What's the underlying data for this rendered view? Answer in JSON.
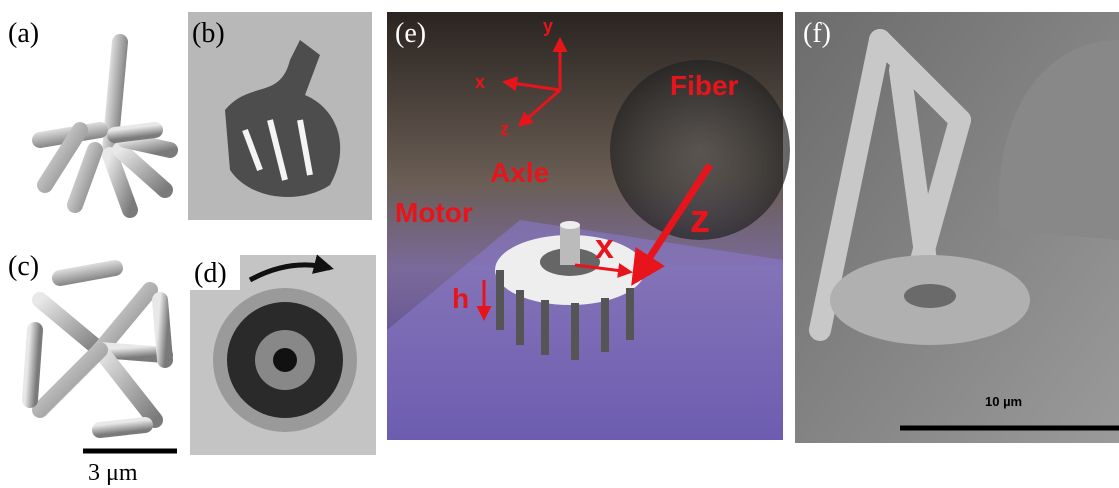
{
  "labels": {
    "a": "(a)",
    "b": "(b)",
    "c": "(c)",
    "d": "(d)",
    "e": "(e)",
    "f": "(f)"
  },
  "scale_bar_left": "3 μm",
  "panel_e": {
    "axis_y": "y",
    "axis_x": "x",
    "axis_z": "z",
    "fiber": "Fiber",
    "axle": "Axle",
    "motor": "Motor",
    "h": "h",
    "x": "x",
    "z": "z"
  },
  "panel_f": {
    "scale_bar": "10 µm"
  }
}
